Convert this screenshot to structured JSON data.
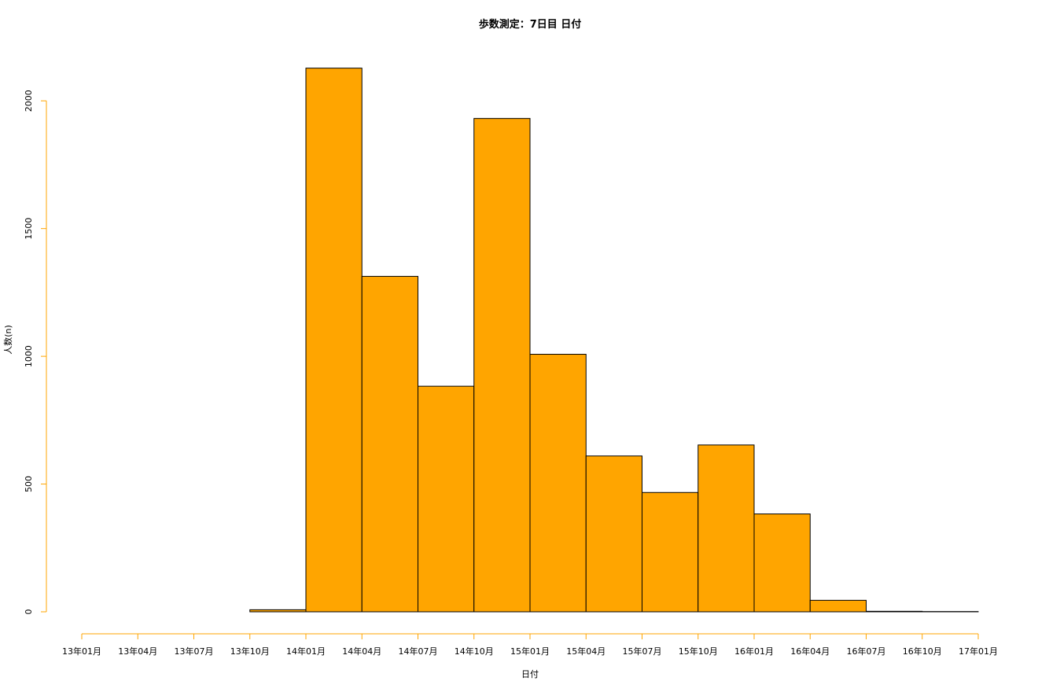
{
  "chart_data": {
    "type": "bar",
    "title": "歩数測定：7日目 日付",
    "xlabel": "日付",
    "ylabel": "人数(n)",
    "x_ticks": [
      "13年01月",
      "13年04月",
      "13年07月",
      "13年10月",
      "14年01月",
      "14年04月",
      "14年07月",
      "14年10月",
      "15年01月",
      "15年04月",
      "15年07月",
      "15年10月",
      "16年01月",
      "16年04月",
      "16年07月",
      "16年10月",
      "17年01月"
    ],
    "y_ticks": [
      0,
      500,
      1000,
      1500,
      2000
    ],
    "ylim": [
      0,
      2130
    ],
    "bins": [
      {
        "start": "13年01月",
        "end": "13年04月",
        "count": 0
      },
      {
        "start": "13年04月",
        "end": "13年07月",
        "count": 0
      },
      {
        "start": "13年07月",
        "end": "13年10月",
        "count": 0
      },
      {
        "start": "13年10月",
        "end": "14年01月",
        "count": 8
      },
      {
        "start": "14年01月",
        "end": "14年04月",
        "count": 2128
      },
      {
        "start": "14年04月",
        "end": "14年07月",
        "count": 1313
      },
      {
        "start": "14年07月",
        "end": "14年10月",
        "count": 883
      },
      {
        "start": "14年10月",
        "end": "15年01月",
        "count": 1931
      },
      {
        "start": "15年01月",
        "end": "15年04月",
        "count": 1008
      },
      {
        "start": "15年04月",
        "end": "15年07月",
        "count": 610
      },
      {
        "start": "15年07月",
        "end": "15年10月",
        "count": 467
      },
      {
        "start": "15年10月",
        "end": "16年01月",
        "count": 653
      },
      {
        "start": "16年01月",
        "end": "16年04月",
        "count": 383
      },
      {
        "start": "16年04月",
        "end": "16年07月",
        "count": 45
      },
      {
        "start": "16年07月",
        "end": "16年10月",
        "count": 2
      },
      {
        "start": "16年10月",
        "end": "17年01月",
        "count": 1
      }
    ],
    "colors": {
      "bar_fill": "#FFA500",
      "bar_stroke": "#000000",
      "axis": "#FFA500"
    },
    "grid": false,
    "legend": "none"
  }
}
